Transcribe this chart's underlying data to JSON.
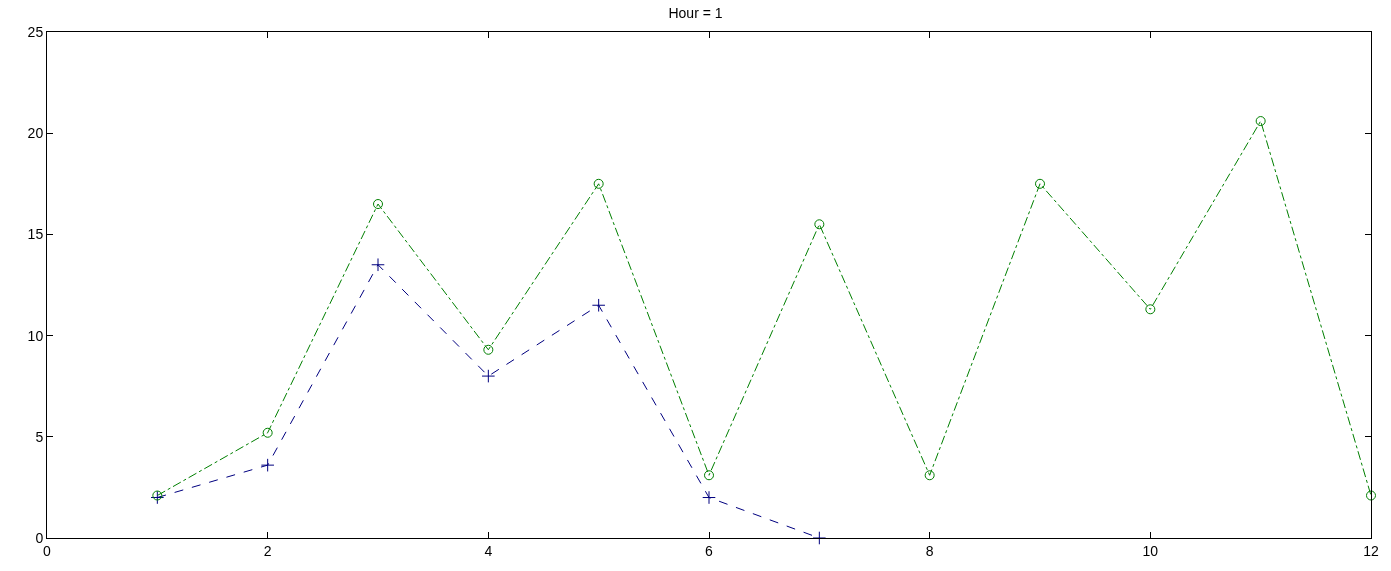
{
  "chart_data": {
    "type": "line",
    "title": "Hour = 1",
    "x": [
      1,
      2,
      3,
      4,
      5,
      6,
      7,
      8,
      9,
      10,
      11,
      12
    ],
    "series": [
      {
        "color": "#00007f",
        "values": [
          2.0,
          3.6,
          13.5,
          8.0,
          11.5,
          2.0,
          0,
          null,
          null,
          null,
          null,
          null
        ],
        "marker": "cross",
        "line_style": "dashed"
      },
      {
        "color": "#007f00",
        "values": [
          2.1,
          5.2,
          16.5,
          9.3,
          17.5,
          3.1,
          15.5,
          3.1,
          17.5,
          11.3,
          20.6,
          2.1
        ],
        "marker": "circle",
        "line_style": "dashdot"
      }
    ],
    "xlim": [
      0,
      12
    ],
    "xticks": [
      0,
      2,
      4,
      6,
      8,
      10,
      12
    ],
    "ylim": [
      0,
      25
    ],
    "yticks": [
      0,
      5,
      10,
      15,
      20,
      25
    ]
  }
}
